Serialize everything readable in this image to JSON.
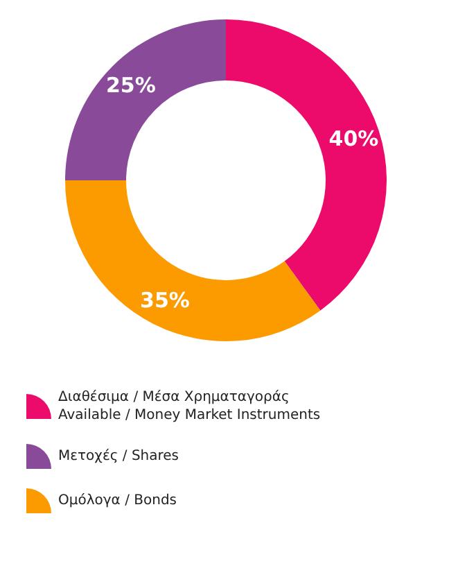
{
  "chart_data": {
    "type": "donut",
    "categories": [
      "Διαθέσιμα / Μέσα Χρηματαγοράς\nAvailable / Money Market Instruments",
      "Μετοχές / Shares",
      "Ομόλογα / Bonds"
    ],
    "values": [
      40,
      25,
      35
    ],
    "colors": [
      "#ec0a6b",
      "#8a4a9a",
      "#fb9b00"
    ],
    "value_labels": [
      "40%",
      "25%",
      "35%"
    ],
    "legend": "bottom left"
  }
}
